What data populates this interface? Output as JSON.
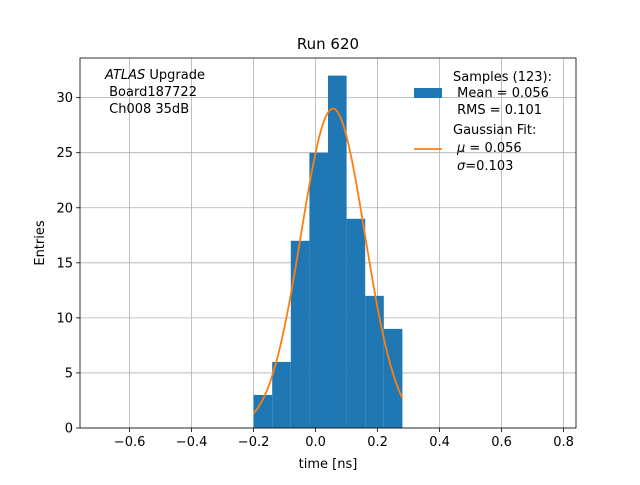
{
  "chart_data": {
    "type": "bar",
    "title": "Run 620",
    "xlabel": "time [ns]",
    "ylabel": "Entries",
    "xlim": [
      -0.76,
      0.84
    ],
    "ylim": [
      0,
      33.6
    ],
    "grid": true,
    "legend_position": "top-right",
    "x_ticks": [
      -0.6,
      -0.4,
      -0.2,
      0.0,
      0.2,
      0.4,
      0.6,
      0.8
    ],
    "x_tick_labels": [
      "−0.6",
      "−0.4",
      "−0.2",
      "0.0",
      "0.2",
      "0.4",
      "0.6",
      "0.8"
    ],
    "y_ticks": [
      0,
      5,
      10,
      15,
      20,
      25,
      30
    ],
    "y_tick_labels": [
      "0",
      "5",
      "10",
      "15",
      "20",
      "25",
      "30"
    ],
    "histogram": {
      "bin_edges": [
        -0.2,
        -0.14,
        -0.08,
        -0.02,
        0.04,
        0.1,
        0.16,
        0.22,
        0.28
      ],
      "counts": [
        3,
        6,
        17,
        25,
        32,
        19,
        12,
        9
      ],
      "color": "#1f77b4"
    },
    "fit": {
      "mu": 0.056,
      "sigma": 0.103,
      "amplitude": 29,
      "x_range": [
        -0.2,
        0.28
      ],
      "color": "#ff7f0e"
    },
    "legend": {
      "samples_line1": "Samples (123):",
      "samples_line2": " Mean = 0.056",
      "samples_line3": " RMS = 0.101",
      "fit_line1": "Gaussian Fit:",
      "fit_line2_symbol": "μ",
      "fit_line2_rest": " = 0.056",
      "fit_line3_symbol": "σ",
      "fit_line3_rest": "=0.103"
    },
    "annotation": {
      "atlas_italic": "ATLAS",
      "atlas_rest": " Upgrade",
      "line2": " Board187722",
      "line3": " Ch008 35dB"
    }
  }
}
